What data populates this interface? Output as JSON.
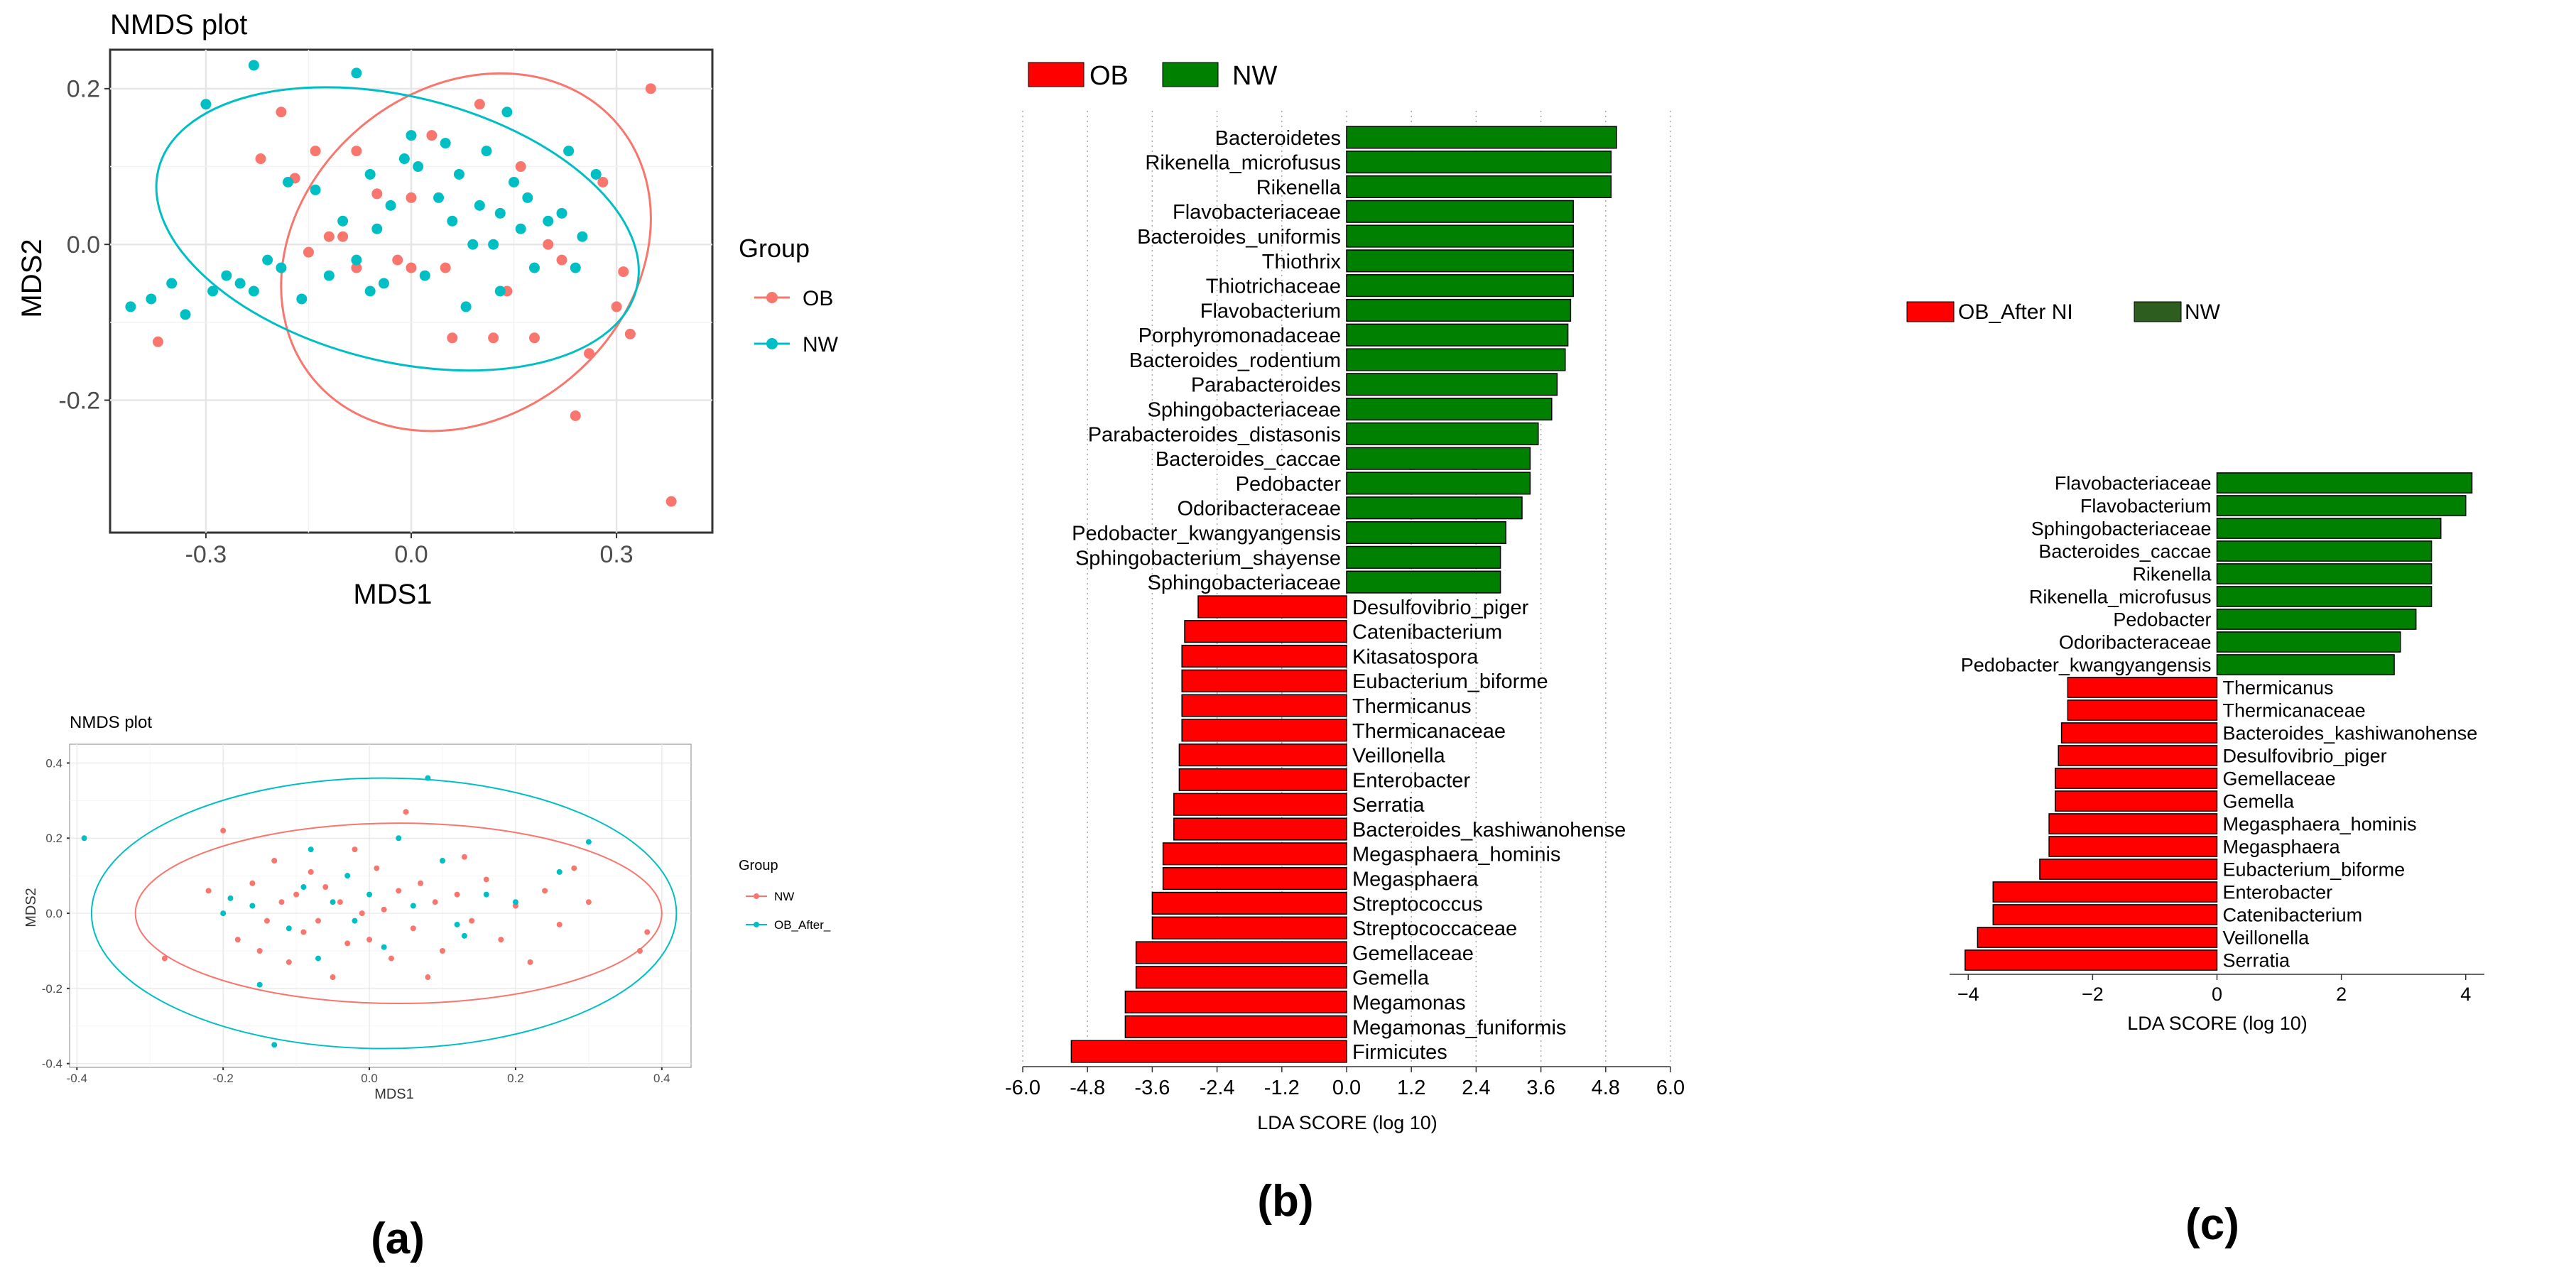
{
  "panel_labels": {
    "a": "(a)",
    "b": "(b)",
    "c": "(c)"
  },
  "colors": {
    "ob_red": "#f8766d",
    "nw_cyan": "#00bfc4",
    "bar_red": "#ff0000",
    "bar_green": "#008000",
    "bar_green_dark": "#2e5e1f",
    "grid": "#e6e6e6",
    "panel_bg": "#ffffff"
  },
  "chart_data": [
    {
      "id": "nmds_top",
      "type": "scatter",
      "title": "NMDS plot",
      "xlabel": "MDS1",
      "ylabel": "MDS2",
      "xlim": [
        -0.44,
        0.44
      ],
      "ylim": [
        -0.37,
        0.25
      ],
      "xticks": [
        {
          "v": -0.3,
          "label": "-0.3"
        },
        {
          "v": 0.0,
          "label": "0.0"
        },
        {
          "v": 0.3,
          "label": "0.3"
        }
      ],
      "yticks": [
        {
          "v": -0.2,
          "label": "-0.2"
        },
        {
          "v": 0.0,
          "label": "0.0"
        },
        {
          "v": 0.2,
          "label": "0.2"
        }
      ],
      "grid": true,
      "legend": {
        "title": "Group",
        "placement": "right"
      },
      "series": [
        {
          "name": "OB",
          "color": "#f8766d",
          "ellipse": {
            "cx": 0.08,
            "cy": -0.01,
            "rx": 0.29,
            "ry": 0.21,
            "angle": -40
          },
          "points": [
            [
              -0.37,
              -0.125
            ],
            [
              -0.19,
              0.17
            ],
            [
              -0.22,
              0.11
            ],
            [
              -0.17,
              0.085
            ],
            [
              -0.15,
              -0.01
            ],
            [
              -0.14,
              0.12
            ],
            [
              -0.12,
              0.01
            ],
            [
              -0.1,
              0.01
            ],
            [
              -0.08,
              0.12
            ],
            [
              -0.08,
              -0.03
            ],
            [
              -0.05,
              0.065
            ],
            [
              -0.02,
              -0.02
            ],
            [
              0.0,
              -0.03
            ],
            [
              0.0,
              0.06
            ],
            [
              0.03,
              0.14
            ],
            [
              0.05,
              -0.03
            ],
            [
              0.06,
              -0.12
            ],
            [
              0.1,
              0.18
            ],
            [
              0.12,
              -0.12
            ],
            [
              0.16,
              0.1
            ],
            [
              0.18,
              -0.12
            ],
            [
              0.2,
              0.0
            ],
            [
              0.22,
              -0.02
            ],
            [
              0.26,
              -0.14
            ],
            [
              0.28,
              0.08
            ],
            [
              0.3,
              -0.08
            ],
            [
              0.31,
              -0.035
            ],
            [
              0.32,
              -0.115
            ],
            [
              0.24,
              -0.22
            ],
            [
              0.35,
              0.2
            ],
            [
              0.38,
              -0.33
            ],
            [
              0.14,
              -0.06
            ]
          ]
        },
        {
          "name": "NW",
          "color": "#00bfc4",
          "ellipse": {
            "cx": -0.02,
            "cy": 0.02,
            "rx": 0.36,
            "ry": 0.17,
            "angle": 14
          },
          "points": [
            [
              -0.41,
              -0.08
            ],
            [
              -0.38,
              -0.07
            ],
            [
              -0.35,
              -0.05
            ],
            [
              -0.33,
              -0.09
            ],
            [
              -0.3,
              0.18
            ],
            [
              -0.29,
              -0.06
            ],
            [
              -0.27,
              -0.04
            ],
            [
              -0.25,
              -0.05
            ],
            [
              -0.23,
              -0.06
            ],
            [
              -0.23,
              0.23
            ],
            [
              -0.21,
              -0.02
            ],
            [
              -0.19,
              -0.03
            ],
            [
              -0.18,
              0.08
            ],
            [
              -0.16,
              -0.07
            ],
            [
              -0.14,
              0.07
            ],
            [
              -0.12,
              -0.04
            ],
            [
              -0.1,
              0.03
            ],
            [
              -0.08,
              0.22
            ],
            [
              -0.08,
              -0.02
            ],
            [
              -0.06,
              -0.06
            ],
            [
              -0.05,
              0.02
            ],
            [
              -0.04,
              -0.05
            ],
            [
              -0.03,
              0.05
            ],
            [
              -0.01,
              0.11
            ],
            [
              0.0,
              0.14
            ],
            [
              0.01,
              0.1
            ],
            [
              0.02,
              -0.04
            ],
            [
              0.04,
              0.06
            ],
            [
              0.05,
              0.13
            ],
            [
              0.06,
              0.03
            ],
            [
              0.07,
              0.09
            ],
            [
              0.08,
              -0.08
            ],
            [
              0.09,
              0.0
            ],
            [
              0.1,
              0.05
            ],
            [
              0.11,
              0.12
            ],
            [
              0.12,
              0.0
            ],
            [
              0.13,
              -0.06
            ],
            [
              0.14,
              0.17
            ],
            [
              0.15,
              0.08
            ],
            [
              0.16,
              0.02
            ],
            [
              0.17,
              0.06
            ],
            [
              0.18,
              -0.03
            ],
            [
              0.2,
              0.03
            ],
            [
              0.22,
              0.04
            ],
            [
              0.23,
              0.12
            ],
            [
              0.24,
              -0.03
            ],
            [
              0.25,
              0.01
            ],
            [
              0.27,
              0.09
            ],
            [
              -0.06,
              0.09
            ],
            [
              0.13,
              0.04
            ]
          ]
        }
      ]
    },
    {
      "id": "nmds_bottom",
      "type": "scatter",
      "title": "NMDS plot",
      "xlabel": "MDS1",
      "ylabel": "MDS2",
      "xlim": [
        -0.41,
        0.44
      ],
      "ylim": [
        -0.41,
        0.45
      ],
      "xticks": [
        {
          "v": -0.4,
          "label": "-0.4"
        },
        {
          "v": -0.2,
          "label": "-0.2"
        },
        {
          "v": 0.0,
          "label": "0.0"
        },
        {
          "v": 0.2,
          "label": "0.2"
        },
        {
          "v": 0.4,
          "label": "0.4"
        }
      ],
      "yticks": [
        {
          "v": -0.4,
          "label": "-0.4"
        },
        {
          "v": -0.2,
          "label": "-0.2"
        },
        {
          "v": 0.0,
          "label": "0.0"
        },
        {
          "v": 0.2,
          "label": "0.2"
        },
        {
          "v": 0.4,
          "label": "0.4"
        }
      ],
      "grid": true,
      "legend": {
        "title": "Group",
        "placement": "right"
      },
      "series": [
        {
          "name": "NW",
          "color": "#f8766d",
          "ellipse": {
            "cx": 0.04,
            "cy": 0.0,
            "rx": 0.36,
            "ry": 0.24,
            "angle": 0
          },
          "points": [
            [
              -0.28,
              -0.12
            ],
            [
              -0.22,
              0.06
            ],
            [
              -0.2,
              0.22
            ],
            [
              -0.18,
              -0.07
            ],
            [
              -0.16,
              0.08
            ],
            [
              -0.14,
              -0.02
            ],
            [
              -0.13,
              0.14
            ],
            [
              -0.12,
              0.03
            ],
            [
              -0.11,
              -0.13
            ],
            [
              -0.1,
              0.05
            ],
            [
              -0.09,
              -0.05
            ],
            [
              -0.08,
              0.11
            ],
            [
              -0.07,
              -0.02
            ],
            [
              -0.06,
              0.07
            ],
            [
              -0.05,
              -0.17
            ],
            [
              -0.04,
              0.03
            ],
            [
              -0.03,
              -0.08
            ],
            [
              -0.02,
              0.17
            ],
            [
              -0.01,
              0.0
            ],
            [
              0.0,
              -0.07
            ],
            [
              0.01,
              0.12
            ],
            [
              0.02,
              0.01
            ],
            [
              0.03,
              -0.12
            ],
            [
              0.04,
              0.06
            ],
            [
              0.05,
              0.27
            ],
            [
              0.06,
              -0.04
            ],
            [
              0.07,
              0.08
            ],
            [
              0.08,
              -0.17
            ],
            [
              0.09,
              0.03
            ],
            [
              0.1,
              -0.1
            ],
            [
              0.12,
              0.05
            ],
            [
              0.14,
              -0.02
            ],
            [
              0.16,
              0.09
            ],
            [
              0.18,
              -0.07
            ],
            [
              0.2,
              0.02
            ],
            [
              0.22,
              -0.13
            ],
            [
              0.24,
              0.06
            ],
            [
              0.26,
              -0.03
            ],
            [
              0.28,
              0.12
            ],
            [
              0.3,
              0.03
            ],
            [
              0.37,
              -0.1
            ],
            [
              0.38,
              -0.05
            ],
            [
              -0.15,
              -0.1
            ],
            [
              0.13,
              0.15
            ]
          ]
        },
        {
          "name": "OB_After_",
          "color": "#00bfc4",
          "ellipse": {
            "cx": 0.02,
            "cy": 0.0,
            "rx": 0.4,
            "ry": 0.36,
            "angle": 0
          },
          "points": [
            [
              -0.39,
              0.2
            ],
            [
              -0.2,
              0.0
            ],
            [
              -0.19,
              0.04
            ],
            [
              -0.16,
              0.02
            ],
            [
              -0.15,
              -0.19
            ],
            [
              -0.13,
              -0.35
            ],
            [
              -0.11,
              -0.04
            ],
            [
              -0.09,
              0.07
            ],
            [
              -0.07,
              -0.12
            ],
            [
              -0.05,
              0.03
            ],
            [
              -0.03,
              0.1
            ],
            [
              -0.02,
              -0.02
            ],
            [
              0.0,
              0.05
            ],
            [
              0.02,
              -0.09
            ],
            [
              0.04,
              0.2
            ],
            [
              0.06,
              0.02
            ],
            [
              0.08,
              0.36
            ],
            [
              0.1,
              0.14
            ],
            [
              0.13,
              -0.06
            ],
            [
              0.16,
              0.05
            ],
            [
              0.2,
              0.03
            ],
            [
              0.26,
              0.11
            ],
            [
              0.3,
              0.19
            ],
            [
              0.12,
              -0.03
            ],
            [
              -0.08,
              0.17
            ]
          ]
        }
      ]
    },
    {
      "id": "lefse_b",
      "type": "bar",
      "orientation": "horizontal",
      "xlabel": "LDA SCORE (log 10)",
      "xlim": [
        -6.0,
        6.0
      ],
      "xticks": [
        "-6.0",
        "-4.8",
        "-3.6",
        "-2.4",
        "-1.2",
        "0.0",
        "1.2",
        "2.4",
        "3.6",
        "4.8",
        "6.0"
      ],
      "grid": true,
      "legend": {
        "placement": "top-left",
        "entries": [
          {
            "name": "OB",
            "color": "#ff0000"
          },
          {
            "name": "NW",
            "color": "#008000"
          }
        ]
      },
      "categories": [
        "Bacteroidetes",
        "Rikenella_microfusus",
        "Rikenella",
        "Flavobacteriaceae",
        "Bacteroides_uniformis",
        "Thiothrix",
        "Thiotrichaceae",
        "Flavobacterium",
        "Porphyromonadaceae",
        "Bacteroides_rodentium",
        "Parabacteroides",
        "Sphingobacteriaceae",
        "Parabacteroides_distasonis",
        "Bacteroides_caccae",
        "Pedobacter",
        "Odoribacteraceae",
        "Pedobacter_kwangyangensis",
        "Sphingobacterium_shayense",
        "Sphingobacteriaceae",
        "Desulfovibrio_piger",
        "Catenibacterium",
        "Kitasatospora",
        "Eubacterium_biforme",
        "Thermicanus",
        "Thermicanaceae",
        "Veillonella",
        "Enterobacter",
        "Serratia",
        "Bacteroides_kashiwanohense",
        "Megasphaera_hominis",
        "Megasphaera",
        "Streptococcus",
        "Streptococcaceae",
        "Gemellaceae",
        "Gemella",
        "Megamonas",
        "Megamonas_funiformis",
        "Firmicutes"
      ],
      "values": [
        5.0,
        4.9,
        4.9,
        4.2,
        4.2,
        4.2,
        4.2,
        4.15,
        4.1,
        4.05,
        3.9,
        3.8,
        3.55,
        3.4,
        3.4,
        3.25,
        2.95,
        2.85,
        2.85,
        -2.75,
        -3.0,
        -3.05,
        -3.05,
        -3.05,
        -3.05,
        -3.1,
        -3.1,
        -3.2,
        -3.2,
        -3.4,
        -3.4,
        -3.6,
        -3.6,
        -3.9,
        -3.9,
        -4.1,
        -4.1,
        -5.1
      ]
    },
    {
      "id": "lefse_c",
      "type": "bar",
      "orientation": "horizontal",
      "xlabel": "LDA SCORE (log 10)",
      "xlim": [
        -4.3,
        4.3
      ],
      "xticks": [
        {
          "v": -4,
          "label": "−4"
        },
        {
          "v": -2,
          "label": "−2"
        },
        {
          "v": 0,
          "label": "0"
        },
        {
          "v": 2,
          "label": "2"
        },
        {
          "v": 4,
          "label": "4"
        }
      ],
      "grid": false,
      "legend": {
        "placement": "top",
        "entries": [
          {
            "name": "OB_After NI",
            "color": "#ff0000"
          },
          {
            "name": "NW",
            "color": "#2e5e1f"
          }
        ]
      },
      "categories": [
        "Flavobacteriaceae",
        "Flavobacterium",
        "Sphingobacteriaceae",
        "Bacteroides_caccae",
        "Rikenella",
        "Rikenella_microfusus",
        "Pedobacter",
        "Odoribacteraceae",
        "Pedobacter_kwangyangensis",
        "Thermicanus",
        "Thermicanaceae",
        "Bacteroides_kashiwanohense",
        "Desulfovibrio_piger",
        "Gemellaceae",
        "Gemella",
        "Megasphaera_hominis",
        "Megasphaera",
        "Eubacterium_biforme",
        "Enterobacter",
        "Catenibacterium",
        "Veillonella",
        "Serratia"
      ],
      "values": [
        4.1,
        4.0,
        3.6,
        3.45,
        3.45,
        3.45,
        3.2,
        2.95,
        2.85,
        -2.4,
        -2.4,
        -2.5,
        -2.55,
        -2.6,
        -2.6,
        -2.7,
        -2.7,
        -2.85,
        -3.6,
        -3.6,
        -3.85,
        -4.05
      ]
    }
  ]
}
